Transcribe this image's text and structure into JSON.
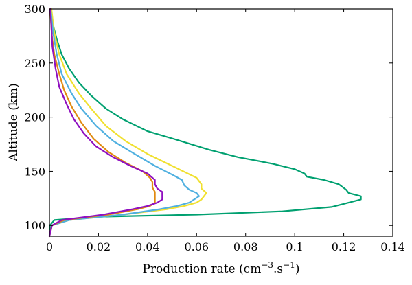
{
  "chart_data": {
    "type": "line",
    "title": "",
    "xlabel": "Production rate (cm",
    "xlabel_sup1": "−3",
    "xlabel_mid": ".s",
    "xlabel_sup2": "−1",
    "xlabel_end": ")",
    "ylabel": "Altitude (km)",
    "xlim": [
      0,
      0.14
    ],
    "ylim": [
      90,
      300
    ],
    "x_ticks": [
      "0",
      "0.02",
      "0.04",
      "0.06",
      "0.08",
      "0.1",
      "0.12",
      "0.14"
    ],
    "y_ticks": [
      "100",
      "150",
      "200",
      "250",
      "300"
    ],
    "grid": false,
    "legend": "none",
    "series": [
      {
        "color": "#00A070",
        "points": [
          [
            0.0,
            90
          ],
          [
            0.0002,
            100
          ],
          [
            0.002,
            105
          ],
          [
            0.02,
            108
          ],
          [
            0.06,
            110
          ],
          [
            0.095,
            113
          ],
          [
            0.115,
            117
          ],
          [
            0.122,
            121
          ],
          [
            0.127,
            124
          ],
          [
            0.127,
            127
          ],
          [
            0.122,
            130
          ],
          [
            0.121,
            133
          ],
          [
            0.118,
            138
          ],
          [
            0.112,
            142
          ],
          [
            0.105,
            145
          ],
          [
            0.104,
            148
          ],
          [
            0.1,
            152
          ],
          [
            0.091,
            157
          ],
          [
            0.077,
            163
          ],
          [
            0.065,
            170
          ],
          [
            0.052,
            179
          ],
          [
            0.04,
            187
          ],
          [
            0.03,
            198
          ],
          [
            0.023,
            208
          ],
          [
            0.017,
            220
          ],
          [
            0.012,
            232
          ],
          [
            0.008,
            245
          ],
          [
            0.005,
            258
          ],
          [
            0.003,
            272
          ],
          [
            0.0015,
            285
          ],
          [
            0.0005,
            300
          ]
        ]
      },
      {
        "color": "#F0E030",
        "points": [
          [
            0.0,
            90
          ],
          [
            0.001,
            100
          ],
          [
            0.008,
            105
          ],
          [
            0.03,
            110
          ],
          [
            0.048,
            115
          ],
          [
            0.055,
            118
          ],
          [
            0.06,
            121
          ],
          [
            0.062,
            124
          ],
          [
            0.063,
            127
          ],
          [
            0.064,
            130
          ],
          [
            0.062,
            134
          ],
          [
            0.062,
            138
          ],
          [
            0.06,
            144
          ],
          [
            0.05,
            155
          ],
          [
            0.04,
            166
          ],
          [
            0.031,
            178
          ],
          [
            0.023,
            192
          ],
          [
            0.017,
            208
          ],
          [
            0.012,
            222
          ],
          [
            0.007,
            240
          ],
          [
            0.004,
            258
          ],
          [
            0.002,
            278
          ],
          [
            0.0008,
            300
          ]
        ]
      },
      {
        "color": "#50B0E0",
        "points": [
          [
            0.0,
            90
          ],
          [
            0.001,
            100
          ],
          [
            0.008,
            105
          ],
          [
            0.03,
            110
          ],
          [
            0.045,
            115
          ],
          [
            0.052,
            118
          ],
          [
            0.057,
            121
          ],
          [
            0.059,
            124
          ],
          [
            0.061,
            127
          ],
          [
            0.06,
            130
          ],
          [
            0.057,
            133
          ],
          [
            0.055,
            137
          ],
          [
            0.054,
            142
          ],
          [
            0.05,
            147
          ],
          [
            0.043,
            155
          ],
          [
            0.034,
            167
          ],
          [
            0.026,
            178
          ],
          [
            0.019,
            192
          ],
          [
            0.013,
            208
          ],
          [
            0.009,
            222
          ],
          [
            0.005,
            240
          ],
          [
            0.003,
            258
          ],
          [
            0.0015,
            278
          ],
          [
            0.0005,
            300
          ]
        ]
      },
      {
        "color": "#E08A10",
        "points": [
          [
            0.0,
            90
          ],
          [
            0.001,
            100
          ],
          [
            0.006,
            105
          ],
          [
            0.024,
            110
          ],
          [
            0.036,
            115
          ],
          [
            0.041,
            118
          ],
          [
            0.043,
            121
          ],
          [
            0.043,
            124
          ],
          [
            0.043,
            127
          ],
          [
            0.043,
            131
          ],
          [
            0.042,
            135
          ],
          [
            0.042,
            140
          ],
          [
            0.041,
            144
          ],
          [
            0.038,
            150
          ],
          [
            0.031,
            158
          ],
          [
            0.024,
            168
          ],
          [
            0.018,
            180
          ],
          [
            0.013,
            195
          ],
          [
            0.009,
            210
          ],
          [
            0.006,
            225
          ],
          [
            0.004,
            240
          ],
          [
            0.002,
            258
          ],
          [
            0.001,
            275
          ],
          [
            0.0003,
            300
          ]
        ]
      },
      {
        "color": "#9010C0",
        "points": [
          [
            0.0,
            90
          ],
          [
            0.001,
            100
          ],
          [
            0.005,
            105
          ],
          [
            0.022,
            110
          ],
          [
            0.034,
            115
          ],
          [
            0.04,
            118
          ],
          [
            0.044,
            121
          ],
          [
            0.046,
            124
          ],
          [
            0.046,
            127
          ],
          [
            0.046,
            131
          ],
          [
            0.044,
            134
          ],
          [
            0.043,
            138
          ],
          [
            0.043,
            142
          ],
          [
            0.04,
            148
          ],
          [
            0.033,
            155
          ],
          [
            0.026,
            163
          ],
          [
            0.019,
            173
          ],
          [
            0.014,
            185
          ],
          [
            0.01,
            198
          ],
          [
            0.007,
            212
          ],
          [
            0.004,
            228
          ],
          [
            0.0025,
            245
          ],
          [
            0.0012,
            265
          ],
          [
            0.0004,
            300
          ]
        ]
      }
    ]
  }
}
